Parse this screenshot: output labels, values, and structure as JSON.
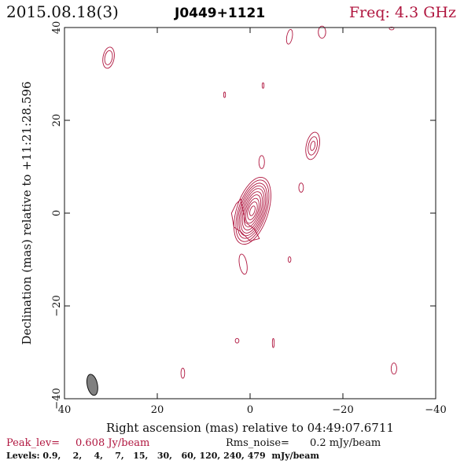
{
  "header": {
    "date": "2015.08.18(3)",
    "source": "J0449+1121",
    "freq": "Freq: 4.3 GHz"
  },
  "chart_data": {
    "type": "contour",
    "xlabel": "Right ascension (mas) relative to 04:49:07.6711",
    "ylabel": "Declination (mas) relative to +11:21:28.596",
    "xlim": [
      40,
      -40
    ],
    "ylim": [
      -40,
      40
    ],
    "x_ticks": [
      40,
      20,
      0,
      -20,
      -40
    ],
    "y_ticks": [
      -40,
      -20,
      0,
      20,
      40
    ],
    "x_tick_labels": [
      "40",
      "20",
      "0",
      "−20",
      "−40"
    ],
    "y_tick_labels": [
      "−40",
      "−20",
      "0",
      "20",
      "40"
    ],
    "color": "#b0163f",
    "peak_label": "Peak_lev=",
    "peak_value": "0.608 Jy/beam",
    "rms_label": "Rms_noise=",
    "rms_value": "0.2 mJy/beam",
    "levels_text": "Levels: 0.9,    2,    4,    7,   15,   30,   60, 120, 240, 479  mJy/beam",
    "levels_mjy": [
      0.9,
      2,
      4,
      7,
      15,
      30,
      60,
      120,
      240,
      479
    ],
    "core": {
      "x": -0.5,
      "y": 0.5,
      "contours": [
        {
          "a": 7.5,
          "b": 3.4,
          "angle": 18
        },
        {
          "a": 6.9,
          "b": 3.0,
          "angle": 18
        },
        {
          "a": 6.2,
          "b": 2.7,
          "angle": 18
        },
        {
          "a": 5.6,
          "b": 2.4,
          "angle": 18
        },
        {
          "a": 5.0,
          "b": 2.1,
          "angle": 18
        },
        {
          "a": 4.3,
          "b": 1.8,
          "angle": 18
        },
        {
          "a": 3.6,
          "b": 1.5,
          "angle": 18
        },
        {
          "a": 2.8,
          "b": 1.2,
          "angle": 18
        },
        {
          "a": 2.0,
          "b": 0.9,
          "angle": 18
        },
        {
          "a": 1.1,
          "b": 0.5,
          "angle": 18
        }
      ]
    },
    "core_wing": [
      [
        4.0,
        0.0
      ],
      [
        3.0,
        2.0
      ],
      [
        2.0,
        3.0
      ],
      [
        1.5,
        0.5
      ],
      [
        1.0,
        -2.0
      ],
      [
        -1.0,
        -3.5
      ],
      [
        -2.0,
        -5.5
      ],
      [
        0.0,
        -6.0
      ],
      [
        2.0,
        -4.0
      ],
      [
        3.5,
        -3.0
      ],
      [
        4.0,
        0.0
      ]
    ],
    "features": [
      {
        "x": 30.5,
        "y": 33.5,
        "rx": 1.2,
        "ry": 2.3,
        "angle": 10,
        "rings": 2
      },
      {
        "x": -13.5,
        "y": 14.5,
        "rx": 1.4,
        "ry": 3.0,
        "angle": 12,
        "rings": 3
      },
      {
        "x": -15.5,
        "y": 39.0,
        "rx": 0.8,
        "ry": 1.3,
        "angle": 0,
        "rings": 1
      },
      {
        "x": -8.5,
        "y": 38.0,
        "rx": 0.6,
        "ry": 1.6,
        "angle": 10,
        "rings": 1
      },
      {
        "x": -30.5,
        "y": 39.8,
        "rx": 0.5,
        "ry": 0.3,
        "angle": 0,
        "rings": 1
      },
      {
        "x": -2.5,
        "y": 11.0,
        "rx": 0.6,
        "ry": 1.4,
        "angle": 0,
        "rings": 1
      },
      {
        "x": -11.0,
        "y": 5.5,
        "rx": 0.5,
        "ry": 1.0,
        "angle": 0,
        "rings": 1
      },
      {
        "x": -2.8,
        "y": 27.5,
        "rx": 0.2,
        "ry": 0.6,
        "angle": 0,
        "rings": 1
      },
      {
        "x": 5.5,
        "y": 25.5,
        "rx": 0.2,
        "ry": 0.6,
        "angle": 0,
        "rings": 1
      },
      {
        "x": 1.5,
        "y": -11.0,
        "rx": 0.8,
        "ry": 2.2,
        "angle": -10,
        "rings": 1
      },
      {
        "x": -8.5,
        "y": -10.0,
        "rx": 0.3,
        "ry": 0.6,
        "angle": 0,
        "rings": 1
      },
      {
        "x": 2.8,
        "y": -27.5,
        "rx": 0.4,
        "ry": 0.5,
        "angle": 0,
        "rings": 1
      },
      {
        "x": -5.0,
        "y": -28.0,
        "rx": 0.2,
        "ry": 1.0,
        "angle": 0,
        "rings": 1
      },
      {
        "x": 14.5,
        "y": -34.5,
        "rx": 0.4,
        "ry": 1.1,
        "angle": 0,
        "rings": 1
      },
      {
        "x": -31.0,
        "y": -33.5,
        "rx": 0.6,
        "ry": 1.2,
        "angle": 0,
        "rings": 1
      }
    ],
    "beam": {
      "x": 34.0,
      "y": -37.0,
      "major": 4.6,
      "minor": 2.2,
      "angle": -12,
      "color": "#808080"
    }
  }
}
